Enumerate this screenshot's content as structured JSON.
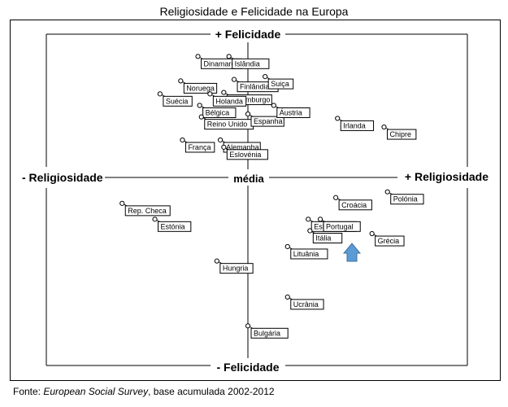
{
  "figure_title": "Religiosidade e Felicidade na Europa",
  "source": {
    "prefix": "Fonte: ",
    "name": "European Social Survey",
    "suffix": ", base acumulada 2002-2012"
  },
  "chart_data": {
    "type": "scatter",
    "title": "Religiosidade e Felicidade na Europa",
    "xlabel_left": "- Religiosidade",
    "xlabel_right": "+ Religiosidade",
    "ylabel_top": "+ Felicidade",
    "ylabel_bottom": "- Felicidade",
    "center_label": "média",
    "xlim": [
      -1,
      1
    ],
    "ylim": [
      -1,
      1
    ],
    "grid": false,
    "legend": "none",
    "colors": {
      "axis": "#000000",
      "point_fill": "#ffffff",
      "arrow": "#5b9bd5",
      "arrow_stroke": "#41719c"
    },
    "points": [
      {
        "label": "Dinamarca",
        "x": -0.29,
        "y": 0.84
      },
      {
        "label": "Islândia",
        "x": -0.11,
        "y": 0.84
      },
      {
        "label": "Finlândia",
        "x": -0.08,
        "y": 0.68
      },
      {
        "label": "Suiça",
        "x": 0.1,
        "y": 0.7
      },
      {
        "label": "Noruega",
        "x": -0.39,
        "y": 0.67
      },
      {
        "label": "Luxemburgo",
        "x": -0.14,
        "y": 0.59
      },
      {
        "label": "Suécia",
        "x": -0.51,
        "y": 0.58
      },
      {
        "label": "Holanda",
        "x": -0.22,
        "y": 0.58
      },
      {
        "label": "Bélgica",
        "x": -0.28,
        "y": 0.5
      },
      {
        "label": "Reino Unido",
        "x": -0.27,
        "y": 0.42
      },
      {
        "label": "Espanha",
        "x": 0.0,
        "y": 0.44
      },
      {
        "label": "Áustria",
        "x": 0.15,
        "y": 0.5
      },
      {
        "label": "Irlanda",
        "x": 0.52,
        "y": 0.41
      },
      {
        "label": "Chipre",
        "x": 0.79,
        "y": 0.35
      },
      {
        "label": "Alemanha",
        "x": -0.16,
        "y": 0.26
      },
      {
        "label": "França",
        "x": -0.38,
        "y": 0.26
      },
      {
        "label": "Eslovénia",
        "x": -0.14,
        "y": 0.21
      },
      {
        "label": "Rep. Checa",
        "x": -0.73,
        "y": -0.18
      },
      {
        "label": "Estónia",
        "x": -0.54,
        "y": -0.29
      },
      {
        "label": "Hungria",
        "x": -0.18,
        "y": -0.58
      },
      {
        "label": "Croácia",
        "x": 0.51,
        "y": -0.14
      },
      {
        "label": "Polónia",
        "x": 0.81,
        "y": -0.1
      },
      {
        "label": "Eslováquia",
        "x": 0.35,
        "y": -0.29
      },
      {
        "label": "Portugal",
        "x": 0.42,
        "y": -0.29
      },
      {
        "label": "Itália",
        "x": 0.36,
        "y": -0.37
      },
      {
        "label": "Grécia",
        "x": 0.72,
        "y": -0.39
      },
      {
        "label": "Lituânia",
        "x": 0.23,
        "y": -0.48
      },
      {
        "label": "Ucrânia",
        "x": 0.23,
        "y": -0.83
      },
      {
        "label": "Bulgária",
        "x": 0.0,
        "y": -1.03
      }
    ]
  }
}
